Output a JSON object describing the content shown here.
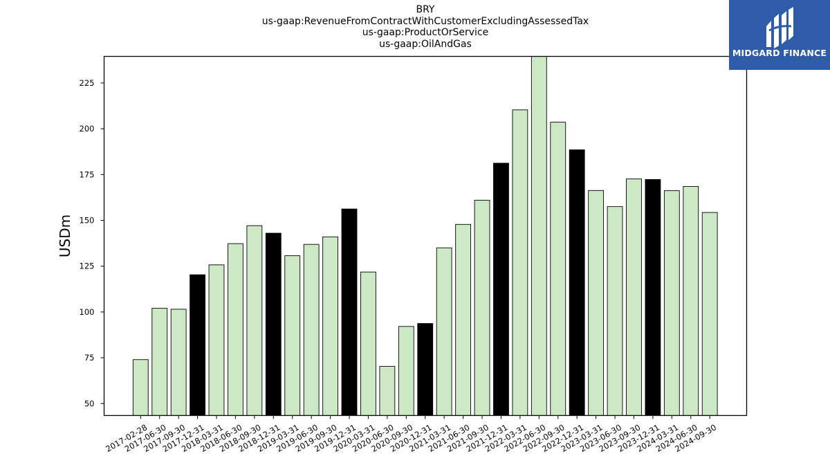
{
  "chart_data": {
    "type": "bar",
    "title_lines": [
      "BRY",
      "us-gaap:RevenueFromContractWithCustomerExcludingAssessedTax",
      "us-gaap:ProductOrService",
      "us-gaap:OilAndGas"
    ],
    "xlabel": "",
    "ylabel": "USDm",
    "ylim": [
      43.5,
      239.5
    ],
    "yticks": [
      50,
      75,
      100,
      125,
      150,
      175,
      200,
      225
    ],
    "grid": false,
    "categories": [
      "2017-02-28",
      "2017-06-30",
      "2017-09-30",
      "2017-12-31",
      "2018-03-31",
      "2018-06-30",
      "2018-09-30",
      "2018-12-31",
      "2019-03-31",
      "2019-06-30",
      "2019-09-30",
      "2019-12-31",
      "2020-03-31",
      "2020-06-30",
      "2020-09-30",
      "2020-12-31",
      "2021-03-31",
      "2021-06-30",
      "2021-09-30",
      "2021-12-31",
      "2022-03-31",
      "2022-06-30",
      "2022-09-30",
      "2022-12-31",
      "2023-03-31",
      "2023-06-30",
      "2023-09-30",
      "2023-12-31",
      "2024-03-31",
      "2024-06-30",
      "2024-09-30"
    ],
    "values": [
      74.0,
      102.0,
      101.5,
      120.3,
      125.7,
      137.3,
      147.1,
      143.0,
      130.7,
      136.9,
      141.0,
      156.2,
      121.8,
      70.3,
      92.1,
      93.7,
      135.0,
      147.8,
      161.0,
      181.2,
      210.3,
      240.0,
      203.6,
      188.5,
      166.3,
      157.5,
      172.6,
      172.3,
      166.2,
      168.5,
      154.3
    ],
    "fiscal_year_end": [
      false,
      false,
      false,
      true,
      false,
      false,
      false,
      true,
      false,
      false,
      false,
      true,
      false,
      false,
      false,
      true,
      false,
      false,
      false,
      true,
      false,
      false,
      false,
      true,
      false,
      false,
      false,
      true,
      false,
      false,
      false
    ],
    "colors": {
      "quarter": "#cce8c4",
      "year_end": "#000000",
      "edge": "#000000"
    }
  },
  "logo": {
    "text": "MIDGARD FINANCE",
    "background": "#2f5ca8"
  }
}
